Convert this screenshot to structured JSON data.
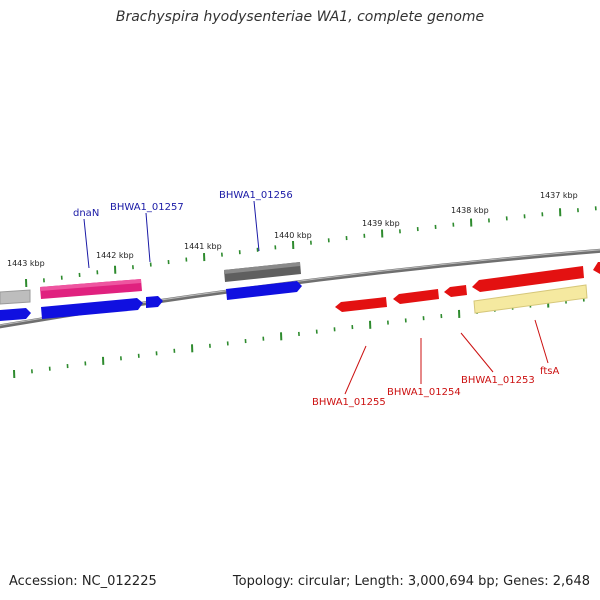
{
  "title": "Brachyspira hyodysenteriae WA1, complete genome",
  "footer": {
    "accession": "Accession: NC_012225",
    "summary": "Topology: circular; Length: 3,000,694 bp; Genes: 2,648"
  },
  "colors": {
    "backbone": "#777777",
    "tick": "#2e8b2e",
    "label_forward": "#1a1aa6",
    "label_reverse": "#cc1111"
  },
  "ticks": [
    {
      "label": "1443 kbp"
    },
    {
      "label": "1442 kbp"
    },
    {
      "label": "1441 kbp"
    },
    {
      "label": "1440 kbp"
    },
    {
      "label": "1439 kbp"
    },
    {
      "label": "1438 kbp"
    },
    {
      "label": "1437 kbp"
    }
  ],
  "genes": [
    {
      "label": "dnaN"
    },
    {
      "label": "BHWA1_01257"
    },
    {
      "label": "BHWA1_01256"
    },
    {
      "label": "BHWA1_01255"
    },
    {
      "label": "BHWA1_01254"
    },
    {
      "label": "BHWA1_01253"
    },
    {
      "label": "ftsA"
    }
  ]
}
